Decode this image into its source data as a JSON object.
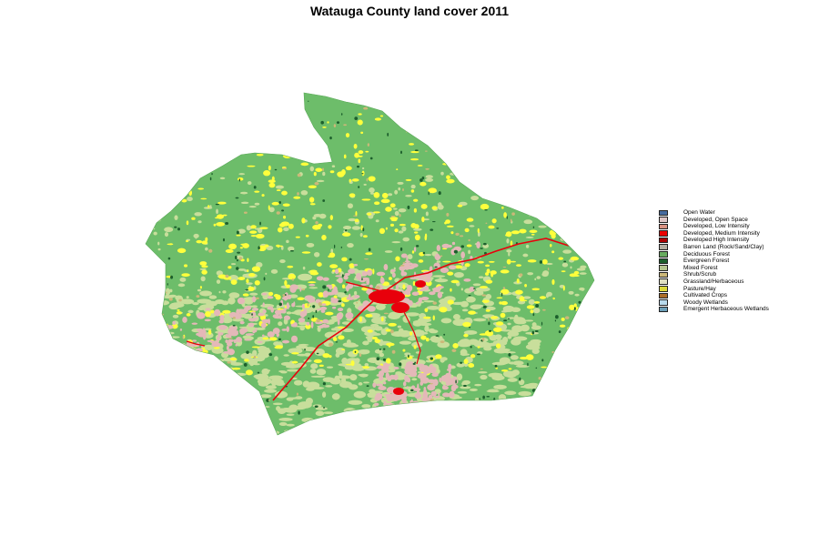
{
  "title": "Watauga County land cover 2011",
  "legend": [
    {
      "label": "Open Water",
      "color": "#466b9f"
    },
    {
      "label": "Developed, Open Space",
      "color": "#dec5c5"
    },
    {
      "label": "Developed, Low Intensity",
      "color": "#d99282"
    },
    {
      "label": "Developed, Medium Intensity",
      "color": "#eb0000"
    },
    {
      "label": "Developed High Intensity",
      "color": "#ab0000"
    },
    {
      "label": "Barren Land (Rock/Sand/Clay)",
      "color": "#b3ac9f"
    },
    {
      "label": "Deciduous Forest",
      "color": "#68ab5f"
    },
    {
      "label": "Evergreen Forest",
      "color": "#1c5f2c"
    },
    {
      "label": "Mixed Forest",
      "color": "#b5c58f"
    },
    {
      "label": "Shrub/Scrub",
      "color": "#ccb879"
    },
    {
      "label": "Grassland/Herbaceous",
      "color": "#dfdfc2"
    },
    {
      "label": "Pasture/Hay",
      "color": "#dcd939"
    },
    {
      "label": "Cultivated Crops",
      "color": "#ab6c28"
    },
    {
      "label": "Woody Wetlands",
      "color": "#b8d9eb"
    },
    {
      "label": "Emergent Herbaceous Wetlands",
      "color": "#6c9fb8"
    }
  ],
  "colors": {
    "forest": "#6dbd6a",
    "mixed_forest": "#c8de9b",
    "pasture": "#ffff3c",
    "developed_open": "#e4b8b8",
    "developed_medium": "#e8000b",
    "evergreen": "#1c5f2c",
    "shrub": "#ccb879"
  }
}
